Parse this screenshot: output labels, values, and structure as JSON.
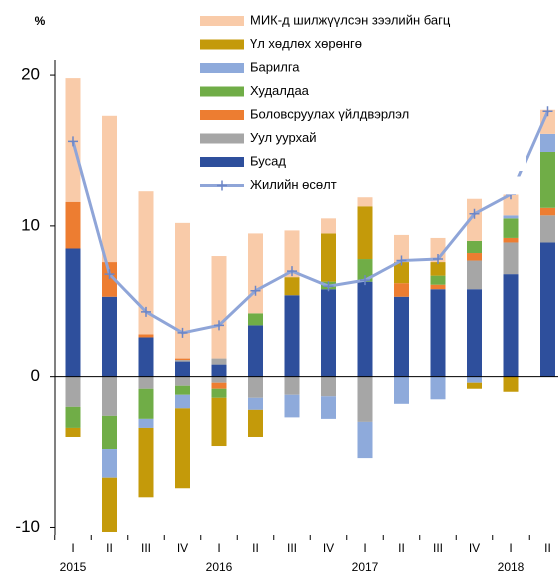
{
  "chart_data": {
    "type": "bar",
    "stacked": true,
    "y_unit_label": "%",
    "categories": [
      "I",
      "II",
      "III",
      "IV",
      "I",
      "II",
      "III",
      "IV",
      "I",
      "II",
      "III",
      "IV",
      "I",
      "II"
    ],
    "years": [
      "2015",
      null,
      null,
      null,
      "2016",
      null,
      null,
      null,
      "2017",
      null,
      null,
      null,
      "2018",
      null
    ],
    "ylim": [
      -10.5,
      21
    ],
    "yticks": [
      -10,
      0,
      10,
      20
    ],
    "grid": false,
    "series": [
      {
        "name": "Бусад",
        "color": "#2e4f9c",
        "type": "bar",
        "values": [
          8.5,
          5.3,
          2.6,
          1.0,
          0.8,
          3.4,
          5.4,
          5.8,
          6.3,
          5.3,
          5.8,
          5.8,
          6.8,
          8.9
        ],
        "negative": [
          null,
          null,
          null,
          null,
          null,
          null,
          null,
          null,
          null,
          null,
          null,
          null,
          null,
          null
        ]
      },
      {
        "name": "Уул уурхай",
        "color": "#a6a6a6",
        "type": "bar",
        "values": [
          null,
          null,
          null,
          0.1,
          0.4,
          null,
          null,
          null,
          null,
          null,
          null,
          1.9,
          2.1,
          1.8
        ],
        "negative": [
          -2.0,
          -2.6,
          -0.8,
          -0.6,
          -0.4,
          -1.4,
          -1.2,
          -1.3,
          -3.0,
          null,
          null,
          null,
          null,
          null
        ]
      },
      {
        "name": "Боловсруулах үйлдвэрлэл",
        "color": "#ed7d31",
        "type": "bar",
        "values": [
          3.1,
          2.3,
          0.2,
          0.1,
          null,
          null,
          null,
          null,
          null,
          0.9,
          0.3,
          0.5,
          0.3,
          0.5
        ],
        "negative": [
          null,
          null,
          null,
          null,
          -0.4,
          null,
          null,
          null,
          null,
          null,
          null,
          null,
          null,
          null
        ]
      },
      {
        "name": "Худалдаа",
        "color": "#70ad47",
        "type": "bar",
        "values": [
          null,
          null,
          null,
          null,
          null,
          0.8,
          null,
          0.5,
          1.5,
          null,
          0.6,
          0.8,
          1.3,
          3.7
        ],
        "negative": [
          -1.4,
          -2.2,
          -2.0,
          -0.6,
          -0.6,
          null,
          null,
          null,
          null,
          null,
          null,
          null,
          null,
          null
        ]
      },
      {
        "name": "Барилга",
        "color": "#8eaadb",
        "type": "bar",
        "values": [
          null,
          null,
          null,
          null,
          null,
          null,
          null,
          null,
          null,
          null,
          null,
          null,
          0.2,
          1.2
        ],
        "negative": [
          null,
          -1.9,
          -0.6,
          -0.9,
          null,
          -0.8,
          -1.5,
          -1.5,
          -2.4,
          -1.8,
          -1.5,
          -0.4,
          null,
          null
        ]
      },
      {
        "name": "Үл хөдлөх хөрөнгө",
        "color": "#c49a0a",
        "type": "bar",
        "values": [
          null,
          null,
          null,
          null,
          null,
          null,
          1.2,
          3.2,
          3.5,
          1.4,
          0.9,
          null,
          null,
          null
        ],
        "negative": [
          -0.6,
          -3.6,
          -4.6,
          -5.3,
          -3.2,
          -1.8,
          null,
          null,
          null,
          null,
          null,
          -0.4,
          -1.0,
          null
        ]
      },
      {
        "name": "МИК-д шилжүүлсэн зээлийн багц",
        "color": "#f9cba9",
        "type": "bar",
        "values": [
          8.2,
          9.7,
          9.5,
          9.0,
          6.8,
          5.3,
          3.1,
          1.0,
          0.6,
          1.8,
          1.6,
          2.8,
          2.4,
          1.6
        ],
        "negative": [
          null,
          null,
          null,
          null,
          null,
          null,
          null,
          null,
          null,
          null,
          null,
          null,
          null,
          null
        ]
      },
      {
        "name": "Жилийн өсөлт",
        "color": "#8fa5d8",
        "type": "line",
        "values": [
          15.6,
          6.8,
          4.3,
          2.9,
          3.4,
          5.7,
          7.0,
          6.0,
          6.4,
          7.7,
          7.8,
          10.8,
          12.1,
          17.6
        ]
      }
    ]
  }
}
